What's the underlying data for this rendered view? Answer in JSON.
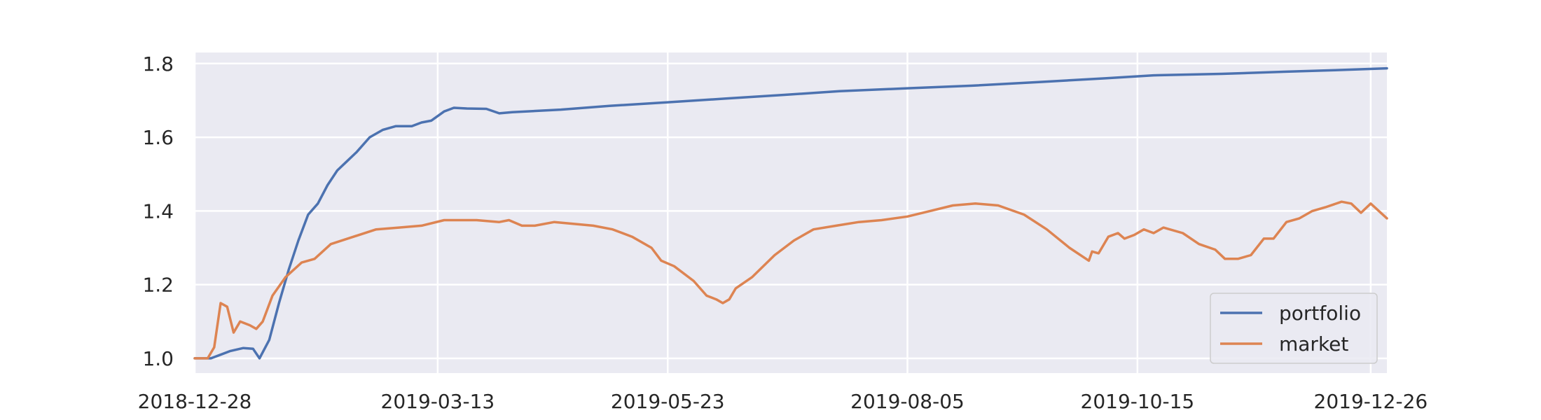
{
  "chart_data": {
    "type": "line",
    "title": "",
    "xlabel": "",
    "ylabel": "",
    "x_range": [
      "2018-12-28",
      "2019-12-31"
    ],
    "ylim": [
      0.96,
      1.83
    ],
    "grid": true,
    "background": "#eaeaf2",
    "grid_color": "#ffffff",
    "legend_position": "lower-right",
    "x_ticks": [
      "2018-12-28",
      "2019-03-13",
      "2019-05-23",
      "2019-08-05",
      "2019-10-15",
      "2019-12-26"
    ],
    "y_ticks": [
      "1.0",
      "1.2",
      "1.4",
      "1.6",
      "1.8"
    ],
    "series": [
      {
        "name": "portfolio",
        "color": "#4c72b0",
        "points": [
          [
            "2018-12-28",
            1.0
          ],
          [
            "2019-01-02",
            1.0
          ],
          [
            "2019-01-05",
            1.01
          ],
          [
            "2019-01-08",
            1.02
          ],
          [
            "2019-01-12",
            1.028
          ],
          [
            "2019-01-15",
            1.026
          ],
          [
            "2019-01-17",
            1.0
          ],
          [
            "2019-01-20",
            1.05
          ],
          [
            "2019-01-23",
            1.15
          ],
          [
            "2019-01-26",
            1.24
          ],
          [
            "2019-01-29",
            1.32
          ],
          [
            "2019-02-01",
            1.39
          ],
          [
            "2019-02-04",
            1.42
          ],
          [
            "2019-02-07",
            1.47
          ],
          [
            "2019-02-10",
            1.51
          ],
          [
            "2019-02-13",
            1.535
          ],
          [
            "2019-02-16",
            1.56
          ],
          [
            "2019-02-20",
            1.6
          ],
          [
            "2019-02-24",
            1.62
          ],
          [
            "2019-02-28",
            1.63
          ],
          [
            "2019-03-05",
            1.63
          ],
          [
            "2019-03-08",
            1.64
          ],
          [
            "2019-03-11",
            1.645
          ],
          [
            "2019-03-15",
            1.67
          ],
          [
            "2019-03-18",
            1.68
          ],
          [
            "2019-03-22",
            1.678
          ],
          [
            "2019-03-28",
            1.677
          ],
          [
            "2019-04-01",
            1.665
          ],
          [
            "2019-04-05",
            1.668
          ],
          [
            "2019-04-20",
            1.675
          ],
          [
            "2019-05-05",
            1.685
          ],
          [
            "2019-05-23",
            1.695
          ],
          [
            "2019-06-10",
            1.705
          ],
          [
            "2019-06-28",
            1.715
          ],
          [
            "2019-07-15",
            1.725
          ],
          [
            "2019-08-05",
            1.733
          ],
          [
            "2019-08-25",
            1.74
          ],
          [
            "2019-09-15",
            1.75
          ],
          [
            "2019-10-05",
            1.76
          ],
          [
            "2019-10-20",
            1.768
          ],
          [
            "2019-11-10",
            1.772
          ],
          [
            "2019-11-30",
            1.778
          ],
          [
            "2019-12-15",
            1.782
          ],
          [
            "2019-12-31",
            1.787
          ]
        ]
      },
      {
        "name": "market",
        "color": "#dd8452",
        "points": [
          [
            "2018-12-28",
            1.0
          ],
          [
            "2019-01-01",
            1.0
          ],
          [
            "2019-01-03",
            1.03
          ],
          [
            "2019-01-05",
            1.15
          ],
          [
            "2019-01-07",
            1.14
          ],
          [
            "2019-01-09",
            1.07
          ],
          [
            "2019-01-11",
            1.1
          ],
          [
            "2019-01-14",
            1.09
          ],
          [
            "2019-01-16",
            1.08
          ],
          [
            "2019-01-18",
            1.1
          ],
          [
            "2019-01-21",
            1.17
          ],
          [
            "2019-01-25",
            1.22
          ],
          [
            "2019-01-30",
            1.26
          ],
          [
            "2019-02-03",
            1.27
          ],
          [
            "2019-02-08",
            1.31
          ],
          [
            "2019-02-15",
            1.33
          ],
          [
            "2019-02-22",
            1.35
          ],
          [
            "2019-03-01",
            1.355
          ],
          [
            "2019-03-08",
            1.36
          ],
          [
            "2019-03-15",
            1.375
          ],
          [
            "2019-03-25",
            1.375
          ],
          [
            "2019-04-01",
            1.37
          ],
          [
            "2019-04-04",
            1.375
          ],
          [
            "2019-04-08",
            1.36
          ],
          [
            "2019-04-12",
            1.36
          ],
          [
            "2019-04-18",
            1.37
          ],
          [
            "2019-04-30",
            1.36
          ],
          [
            "2019-05-06",
            1.35
          ],
          [
            "2019-05-12",
            1.33
          ],
          [
            "2019-05-18",
            1.3
          ],
          [
            "2019-05-21",
            1.265
          ],
          [
            "2019-05-25",
            1.25
          ],
          [
            "2019-05-31",
            1.21
          ],
          [
            "2019-06-04",
            1.17
          ],
          [
            "2019-06-07",
            1.16
          ],
          [
            "2019-06-09",
            1.15
          ],
          [
            "2019-06-11",
            1.16
          ],
          [
            "2019-06-13",
            1.19
          ],
          [
            "2019-06-18",
            1.22
          ],
          [
            "2019-06-25",
            1.28
          ],
          [
            "2019-07-01",
            1.32
          ],
          [
            "2019-07-07",
            1.35
          ],
          [
            "2019-07-14",
            1.36
          ],
          [
            "2019-07-21",
            1.37
          ],
          [
            "2019-07-28",
            1.375
          ],
          [
            "2019-08-05",
            1.385
          ],
          [
            "2019-08-12",
            1.4
          ],
          [
            "2019-08-19",
            1.415
          ],
          [
            "2019-08-26",
            1.42
          ],
          [
            "2019-09-02",
            1.415
          ],
          [
            "2019-09-10",
            1.39
          ],
          [
            "2019-09-17",
            1.35
          ],
          [
            "2019-09-24",
            1.3
          ],
          [
            "2019-09-30",
            1.265
          ],
          [
            "2019-10-01",
            1.29
          ],
          [
            "2019-10-03",
            1.285
          ],
          [
            "2019-10-06",
            1.33
          ],
          [
            "2019-10-09",
            1.34
          ],
          [
            "2019-10-11",
            1.325
          ],
          [
            "2019-10-14",
            1.335
          ],
          [
            "2019-10-17",
            1.35
          ],
          [
            "2019-10-20",
            1.34
          ],
          [
            "2019-10-23",
            1.355
          ],
          [
            "2019-10-29",
            1.34
          ],
          [
            "2019-11-03",
            1.31
          ],
          [
            "2019-11-08",
            1.295
          ],
          [
            "2019-11-11",
            1.27
          ],
          [
            "2019-11-15",
            1.27
          ],
          [
            "2019-11-19",
            1.28
          ],
          [
            "2019-11-23",
            1.325
          ],
          [
            "2019-11-26",
            1.325
          ],
          [
            "2019-11-30",
            1.37
          ],
          [
            "2019-12-04",
            1.38
          ],
          [
            "2019-12-08",
            1.4
          ],
          [
            "2019-12-12",
            1.41
          ],
          [
            "2019-12-17",
            1.425
          ],
          [
            "2019-12-20",
            1.42
          ],
          [
            "2019-12-23",
            1.395
          ],
          [
            "2019-12-26",
            1.42
          ],
          [
            "2019-12-31",
            1.38
          ]
        ]
      }
    ]
  }
}
